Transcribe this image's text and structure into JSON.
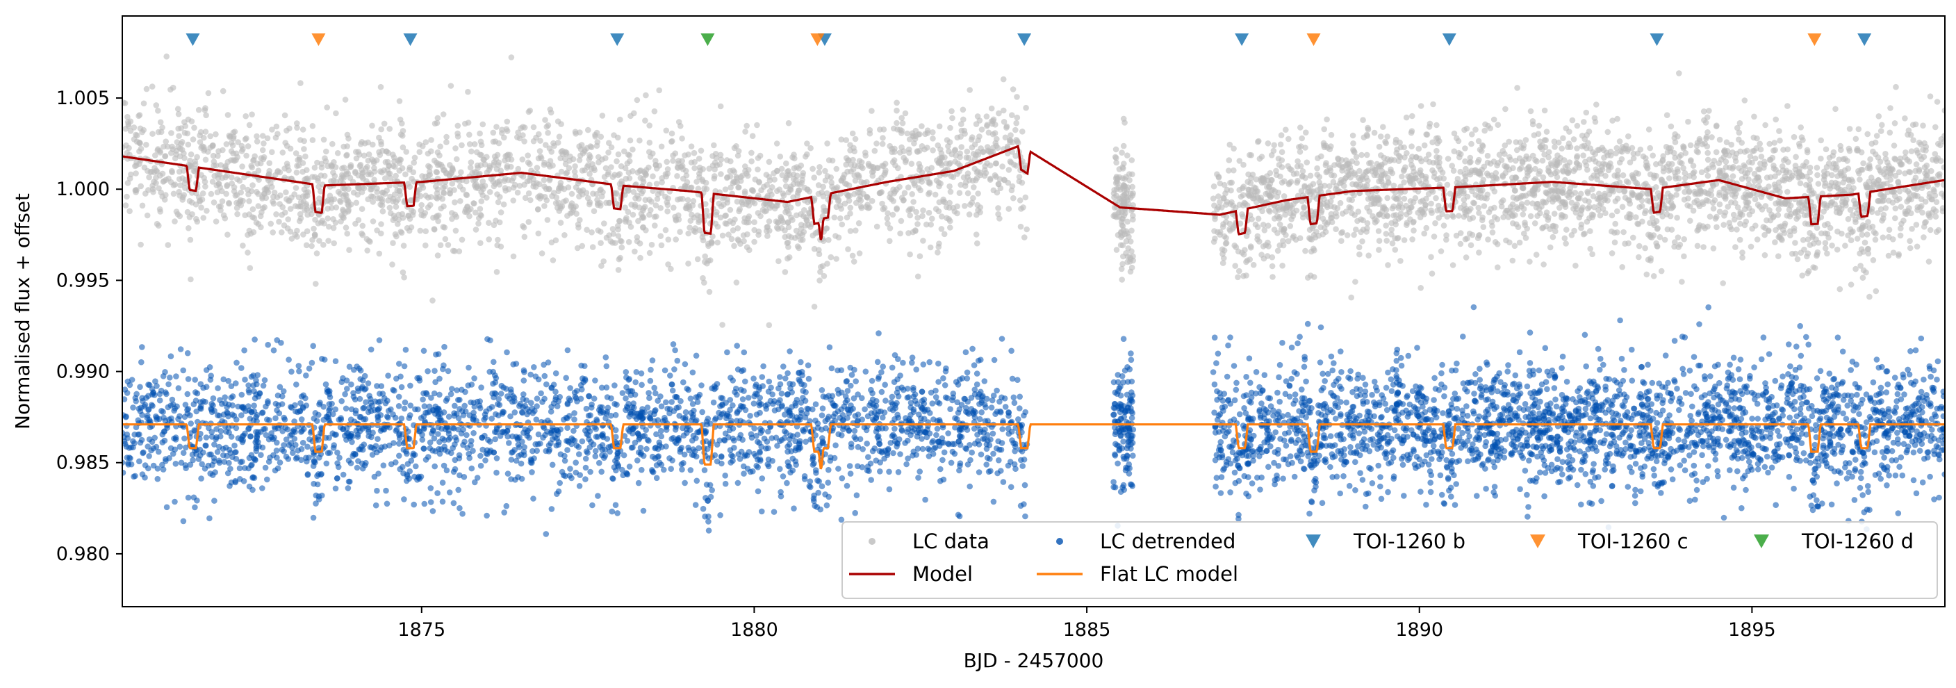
{
  "chart_data": {
    "type": "scatter",
    "title": "",
    "xlabel": "BJD - 2457000",
    "ylabel": "Normalised flux + offset",
    "xlim": [
      1870.5,
      1897.9
    ],
    "ylim": [
      0.9771,
      1.0095
    ],
    "xticks": [
      1875,
      1880,
      1885,
      1890,
      1895
    ],
    "yticks": [
      0.98,
      0.985,
      0.99,
      0.995,
      1.0,
      1.005
    ],
    "xtick_labels": [
      "1875",
      "1880",
      "1885",
      "1890",
      "1895"
    ],
    "ytick_labels": [
      "0.980",
      "0.985",
      "0.990",
      "0.995",
      "1.000",
      "1.005"
    ],
    "grid": false,
    "legend_position": "lower-right",
    "data_segments": [
      [
        1870.5,
        1884.1
      ],
      [
        1885.4,
        1885.7
      ],
      [
        1886.9,
        1897.9
      ]
    ],
    "series": [
      {
        "name": "LC data",
        "kind": "scatter",
        "color": "#bbbbbb",
        "baseline": 1.0,
        "scatter_sigma": 0.0017,
        "baseline_trend": [
          [
            1870.5,
            1.0018
          ],
          [
            1872.0,
            1.001
          ],
          [
            1873.5,
            1.0002
          ],
          [
            1875.0,
            1.0004
          ],
          [
            1876.5,
            1.0009
          ],
          [
            1878.0,
            1.0002
          ],
          [
            1879.0,
            0.9999
          ],
          [
            1880.5,
            0.9993
          ],
          [
            1882.0,
            1.0004
          ],
          [
            1883.0,
            1.001
          ],
          [
            1884.0,
            1.0024
          ],
          [
            1885.5,
            0.999
          ],
          [
            1887.0,
            0.9986
          ],
          [
            1888.0,
            0.9994
          ],
          [
            1889.0,
            0.9999
          ],
          [
            1890.5,
            1.0001
          ],
          [
            1892.0,
            1.0004
          ],
          [
            1893.5,
            1.0
          ],
          [
            1894.5,
            1.0005
          ],
          [
            1895.5,
            0.9995
          ],
          [
            1896.5,
            0.9997
          ],
          [
            1897.9,
            1.0005
          ]
        ]
      },
      {
        "name": "LC detrended",
        "kind": "scatter",
        "color": "#0050b0",
        "baseline": 0.9871,
        "scatter_sigma": 0.0017
      },
      {
        "name": "Model",
        "kind": "line",
        "color": "#aa0000",
        "points": [
          [
            1870.5,
            1.0018
          ],
          [
            1872.0,
            1.001
          ],
          [
            1873.5,
            1.0002
          ],
          [
            1875.0,
            1.0004
          ],
          [
            1876.5,
            1.0009
          ],
          [
            1878.0,
            1.0002
          ],
          [
            1879.0,
            0.9999
          ],
          [
            1880.5,
            0.9993
          ],
          [
            1882.0,
            1.0004
          ],
          [
            1883.0,
            1.001
          ],
          [
            1884.0,
            1.0024
          ],
          [
            1885.5,
            0.999
          ],
          [
            1887.0,
            0.9986
          ],
          [
            1888.0,
            0.9994
          ],
          [
            1889.0,
            0.9999
          ],
          [
            1890.5,
            1.0001
          ],
          [
            1892.0,
            1.0004
          ],
          [
            1893.5,
            1.0
          ],
          [
            1894.5,
            1.0005
          ],
          [
            1895.5,
            0.9995
          ],
          [
            1896.5,
            0.9997
          ],
          [
            1897.9,
            1.0005
          ]
        ]
      },
      {
        "name": "Flat LC model",
        "kind": "line",
        "color": "#ff7f0e",
        "baseline": 0.9871
      },
      {
        "name": "TOI-1260 b",
        "kind": "marker",
        "color": "#1f77b4",
        "marker_y": 1.0082,
        "depth": 0.0013,
        "transits": [
          1871.56,
          1874.83,
          1877.94,
          1881.06,
          1884.06,
          1887.33,
          1890.45,
          1893.57,
          1896.69
        ]
      },
      {
        "name": "TOI-1260 c",
        "kind": "marker",
        "color": "#ff7f0e",
        "marker_y": 1.0082,
        "depth": 0.0015,
        "transits": [
          1873.45,
          1880.95,
          1888.41,
          1895.94
        ]
      },
      {
        "name": "TOI-1260 d",
        "kind": "marker",
        "color": "#2ca02c",
        "marker_y": 1.0082,
        "depth": 0.0022,
        "transits": [
          1879.3
        ]
      }
    ]
  }
}
